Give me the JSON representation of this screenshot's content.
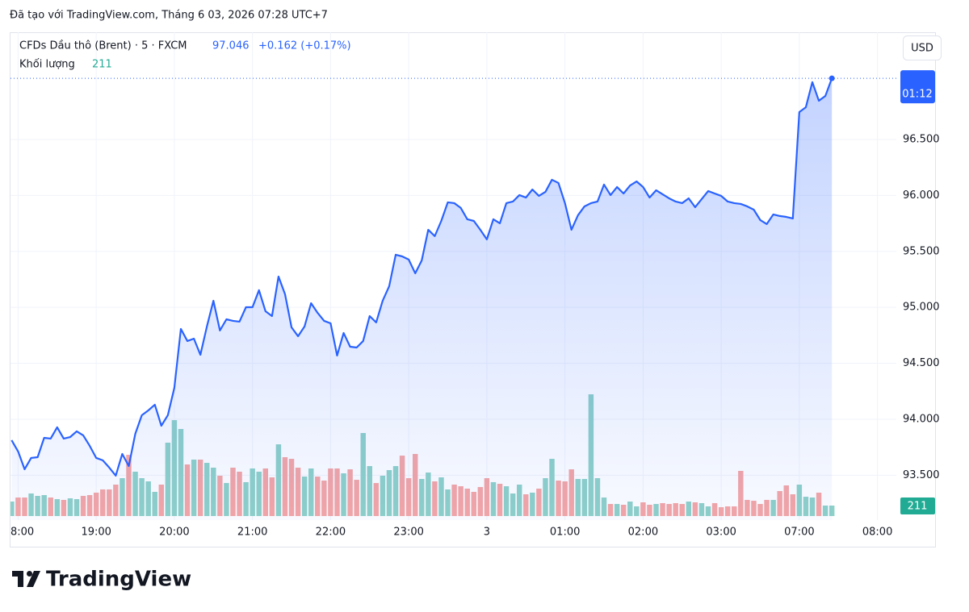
{
  "watermark": "Đã tạo với TradingView.com, Tháng 6 03, 2026 07:28 UTC+7",
  "currency": "USD",
  "brand": "TradingView",
  "chart_data": {
    "type": "line",
    "title": "CFDs Dầu thô (Brent) · 5 · FXCM",
    "change_label": "+0.162 (+0.17%)",
    "countdown": "01:12",
    "xlim": [
      -0.17,
      135.9
    ],
    "xticks": [
      {
        "value": 1,
        "label": "8:00"
      },
      {
        "value": 13,
        "label": "19:00"
      },
      {
        "value": 25,
        "label": "20:00"
      },
      {
        "value": 37,
        "label": "21:00"
      },
      {
        "value": 49,
        "label": "22:00"
      },
      {
        "value": 61,
        "label": "23:00"
      },
      {
        "value": 73,
        "label": "3"
      },
      {
        "value": 85,
        "label": "01:00"
      },
      {
        "value": 97,
        "label": "02:00"
      },
      {
        "value": 109,
        "label": "03:00"
      },
      {
        "value": 121,
        "label": "07:00"
      },
      {
        "value": 133,
        "label": "08:00"
      }
    ],
    "ylim": [
      93.135,
      97.458
    ],
    "yticks": [
      {
        "value": 93.5,
        "label": "93.500"
      },
      {
        "value": 94,
        "label": "94.000"
      },
      {
        "value": 94.5,
        "label": "94.500"
      },
      {
        "value": 95,
        "label": "95.000"
      },
      {
        "value": 95.5,
        "label": "95.500"
      },
      {
        "value": 96,
        "label": "96.000"
      },
      {
        "value": 96.5,
        "label": "96.500"
      }
    ],
    "y2lim": [
      0,
      9740
    ],
    "grid": true,
    "series": [
      {
        "name": "CFDs Dầu thô (Brent) · 5 · FXCM",
        "type": "area",
        "color": "#2962ff",
        "value_labels": {
          "125": "97.046"
        },
        "values": [
          93.813,
          93.712,
          93.553,
          93.654,
          93.661,
          93.834,
          93.827,
          93.928,
          93.827,
          93.841,
          93.892,
          93.856,
          93.762,
          93.654,
          93.633,
          93.568,
          93.496,
          93.69,
          93.582,
          93.87,
          94.036,
          94.079,
          94.13,
          93.942,
          94.036,
          94.281,
          94.807,
          94.699,
          94.72,
          94.576,
          94.829,
          95.059,
          94.793,
          94.893,
          94.879,
          94.872,
          95.001,
          95.001,
          95.153,
          94.965,
          94.922,
          95.275,
          95.117,
          94.821,
          94.742,
          94.829,
          95.037,
          94.951,
          94.879,
          94.857,
          94.569,
          94.771,
          94.648,
          94.641,
          94.699,
          94.922,
          94.865,
          95.059,
          95.189,
          95.47,
          95.455,
          95.427,
          95.304,
          95.419,
          95.693,
          95.636,
          95.772,
          95.938,
          95.931,
          95.888,
          95.787,
          95.772,
          95.693,
          95.607,
          95.787,
          95.751,
          95.931,
          95.945,
          96.003,
          95.981,
          96.053,
          95.996,
          96.032,
          96.14,
          96.111,
          95.931,
          95.693,
          95.823,
          95.902,
          95.931,
          95.945,
          96.097,
          96.003,
          96.075,
          96.017,
          96.089,
          96.125,
          96.075,
          95.981,
          96.046,
          96.01,
          95.974,
          95.945,
          95.931,
          95.974,
          95.895,
          95.967,
          96.039,
          96.017,
          95.996,
          95.945,
          95.931,
          95.924,
          95.902,
          95.873,
          95.78,
          95.744,
          95.83,
          95.816,
          95.808,
          95.794,
          96.745,
          96.788,
          97.012,
          96.846,
          96.889,
          97.046
        ]
      },
      {
        "name": "Khối lượng",
        "type": "volume",
        "axis": "y2",
        "up_color": "#8fd1c8",
        "down_color": "#f5a6a5",
        "values": [
          292,
          373,
          373,
          454,
          406,
          422,
          373,
          341,
          325,
          357,
          341,
          406,
          422,
          471,
          536,
          536,
          633,
          763,
          1233,
          893,
          763,
          698,
          487,
          633,
          1477,
          1931,
          1753,
          1039,
          1136,
          1136,
          1071,
          974,
          812,
          665,
          974,
          893,
          682,
          958,
          893,
          958,
          779,
          1444,
          1185,
          1152,
          974,
          795,
          958,
          795,
          714,
          958,
          958,
          860,
          941,
          730,
          1672,
          1006,
          665,
          812,
          925,
          1006,
          1217,
          763,
          1250,
          747,
          876,
          698,
          779,
          536,
          633,
          600,
          552,
          487,
          584,
          763,
          682,
          649,
          600,
          454,
          633,
          438,
          471,
          552,
          763,
          1152,
          714,
          698,
          941,
          747,
          747,
          2451,
          763,
          373,
          243,
          243,
          227,
          292,
          195,
          276,
          227,
          243,
          260,
          243,
          260,
          243,
          292,
          276,
          260,
          195,
          260,
          178,
          195,
          195,
          909,
          325,
          308,
          243,
          325,
          325,
          503,
          617,
          438,
          633,
          389,
          373,
          471,
          211,
          211
        ]
      }
    ]
  }
}
